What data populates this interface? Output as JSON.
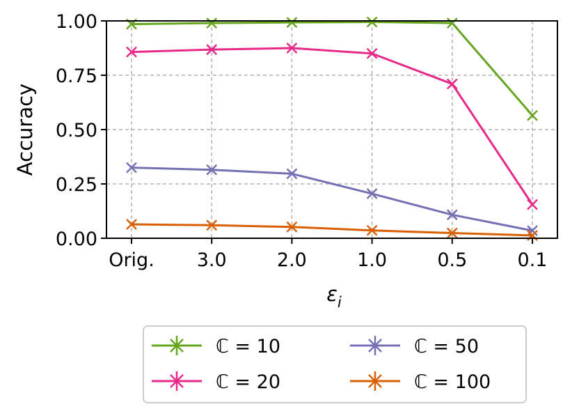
{
  "chart_data": {
    "type": "line",
    "categories": [
      "Orig.",
      "3.0",
      "2.0",
      "1.0",
      "0.5",
      "0.1"
    ],
    "xlabel": "ε",
    "xlabel_subscript": "i",
    "ylabel": "Accuracy",
    "ylim": [
      0,
      1.0
    ],
    "yticks": [
      "0.00",
      "0.25",
      "0.50",
      "0.75",
      "1.00"
    ],
    "grid": true,
    "legend_position": "below",
    "series": [
      {
        "name": "ℂ = 10",
        "color": "#66a61e",
        "values": [
          0.985,
          0.99,
          0.993,
          0.995,
          0.99,
          0.565
        ]
      },
      {
        "name": "ℂ = 20",
        "color": "#e7298a",
        "values": [
          0.857,
          0.868,
          0.875,
          0.85,
          0.71,
          0.155
        ]
      },
      {
        "name": "ℂ = 50",
        "color": "#7570b3",
        "values": [
          0.325,
          0.315,
          0.297,
          0.205,
          0.108,
          0.035
        ]
      },
      {
        "name": "ℂ = 100",
        "color": "#d95f02",
        "values": [
          0.064,
          0.06,
          0.052,
          0.036,
          0.024,
          0.013
        ]
      }
    ]
  }
}
